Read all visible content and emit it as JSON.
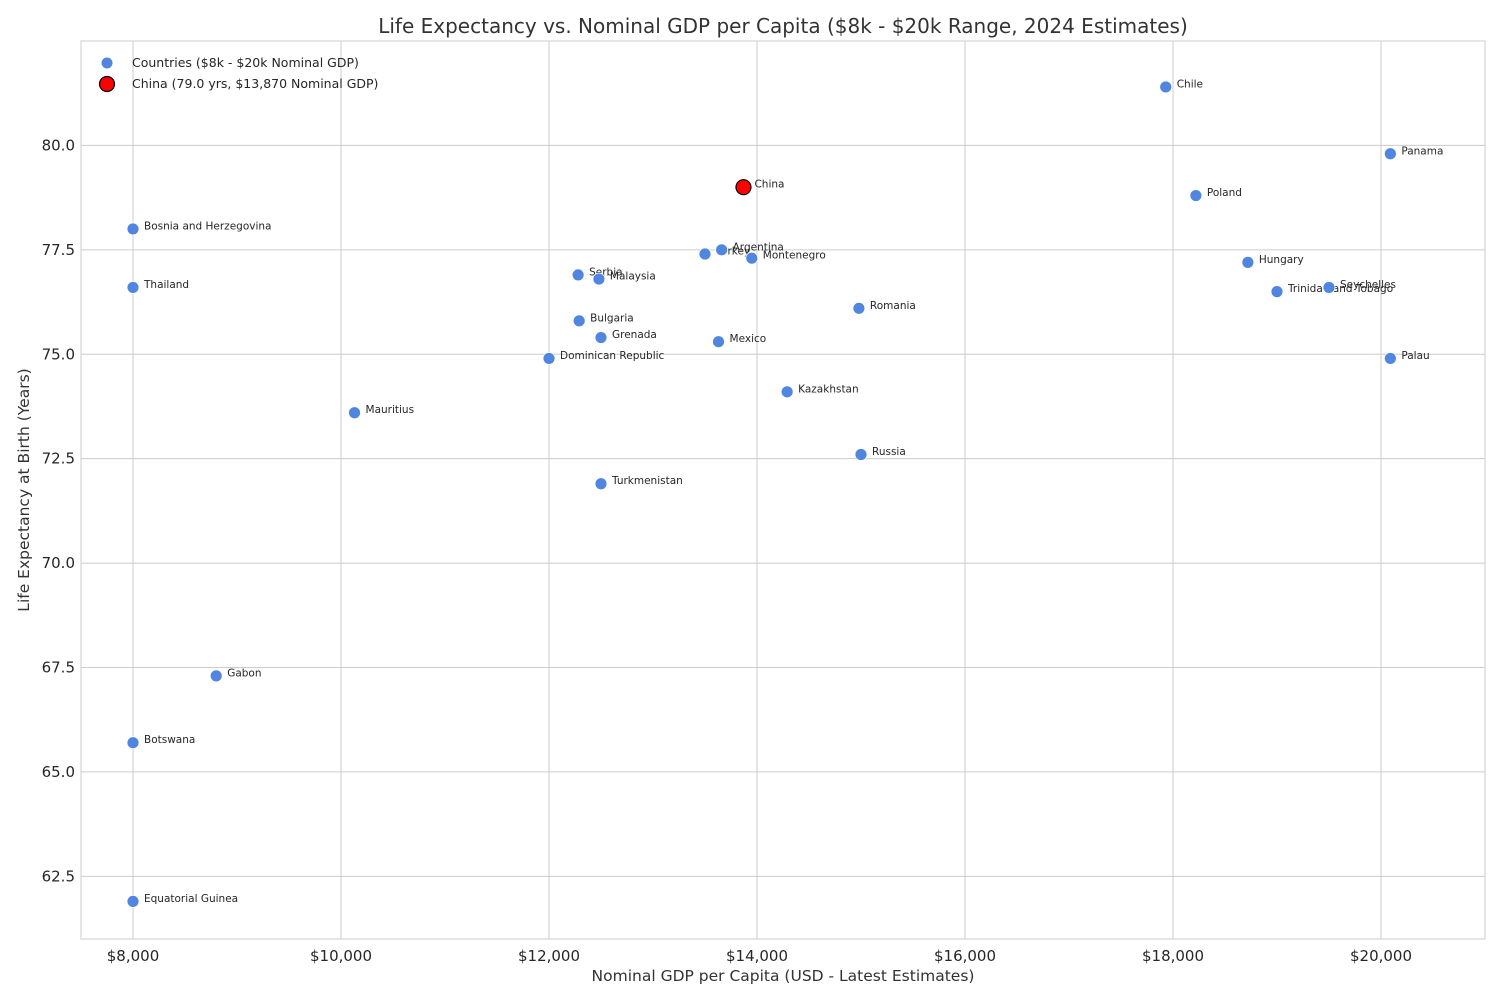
{
  "chart_data": {
    "type": "scatter",
    "title": "Life Expectancy vs. Nominal GDP per Capita ($8k - $20k Range, 2024 Estimates)",
    "xlabel": "Nominal GDP per Capita (USD - Latest Estimates)",
    "ylabel": "Life Expectancy at Birth (Years)",
    "xlim": [
      7500,
      21000
    ],
    "ylim": [
      61.0,
      82.5
    ],
    "x_ticks": [
      8000,
      10000,
      12000,
      14000,
      16000,
      18000,
      20000
    ],
    "x_tick_labels": [
      "$8,000",
      "$10,000",
      "$12,000",
      "$14,000",
      "$16,000",
      "$18,000",
      "$20,000"
    ],
    "y_ticks": [
      62.5,
      65.0,
      67.5,
      70.0,
      72.5,
      75.0,
      77.5,
      80.0
    ],
    "y_tick_labels": [
      "62.5",
      "65.0",
      "67.5",
      "70.0",
      "72.5",
      "75.0",
      "77.5",
      "80.0"
    ],
    "grid": true,
    "legend_position": "top-left",
    "colors": {
      "countries": "#5086e0",
      "highlight": "#ff0000",
      "highlight_edge": "#000000"
    },
    "series": [
      {
        "name": "Countries ($8k - $20k Nominal GDP)",
        "points": [
          {
            "label": "Bosnia and Herzegovina",
            "x": 8000,
            "y": 78.0
          },
          {
            "label": "Thailand",
            "x": 8000,
            "y": 76.6
          },
          {
            "label": "Botswana",
            "x": 8000,
            "y": 65.7
          },
          {
            "label": "Equatorial Guinea",
            "x": 8000,
            "y": 61.9
          },
          {
            "label": "Gabon",
            "x": 8800,
            "y": 67.3
          },
          {
            "label": "Mauritius",
            "x": 10130,
            "y": 73.6
          },
          {
            "label": "Dominican Republic",
            "x": 12000,
            "y": 74.9
          },
          {
            "label": "Serbia",
            "x": 12280,
            "y": 76.9
          },
          {
            "label": "Bulgaria",
            "x": 12290,
            "y": 75.8
          },
          {
            "label": "Malaysia",
            "x": 12480,
            "y": 76.8
          },
          {
            "label": "Grenada",
            "x": 12500,
            "y": 75.4
          },
          {
            "label": "Turkmenistan",
            "x": 12500,
            "y": 71.9
          },
          {
            "label": "Turkey",
            "x": 13500,
            "y": 77.4
          },
          {
            "label": "Argentina",
            "x": 13660,
            "y": 77.5
          },
          {
            "label": "Mexico",
            "x": 13630,
            "y": 75.3
          },
          {
            "label": "Montenegro",
            "x": 13950,
            "y": 77.3
          },
          {
            "label": "Kazakhstan",
            "x": 14290,
            "y": 74.1
          },
          {
            "label": "Romania",
            "x": 14980,
            "y": 76.1
          },
          {
            "label": "Russia",
            "x": 15000,
            "y": 72.6
          },
          {
            "label": "Chile",
            "x": 17930,
            "y": 81.4
          },
          {
            "label": "Poland",
            "x": 18220,
            "y": 78.8
          },
          {
            "label": "Hungary",
            "x": 18720,
            "y": 77.2
          },
          {
            "label": "Trinidad and Tobago",
            "x": 19000,
            "y": 76.5
          },
          {
            "label": "Seychelles",
            "x": 19500,
            "y": 76.6
          },
          {
            "label": "Panama",
            "x": 20090,
            "y": 79.8
          },
          {
            "label": "Palau",
            "x": 20090,
            "y": 74.9
          }
        ]
      },
      {
        "name": "China (79.0 yrs, $13,870 Nominal GDP)",
        "points": [
          {
            "label": "China",
            "x": 13870,
            "y": 79.0
          }
        ]
      }
    ]
  }
}
